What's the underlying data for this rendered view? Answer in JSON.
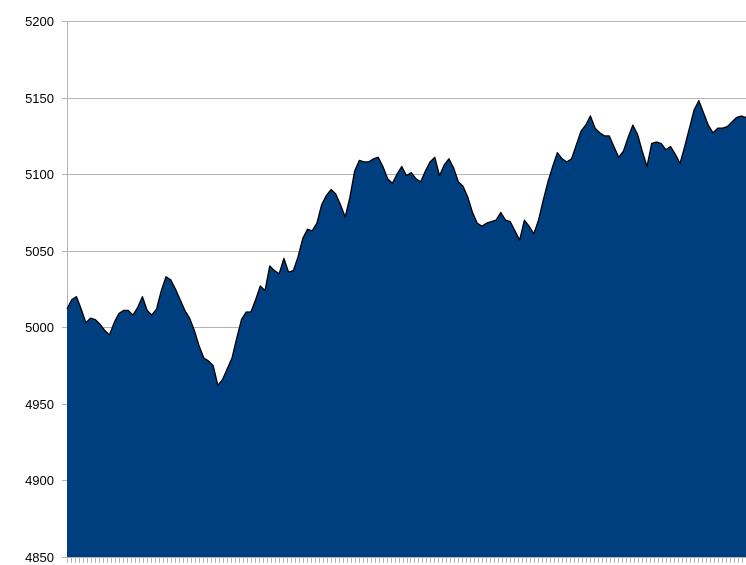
{
  "chart_data": {
    "type": "area",
    "title": "",
    "xlabel": "",
    "ylabel": "",
    "ylim": [
      4850,
      5200
    ],
    "yticks": [
      4850,
      4900,
      4950,
      5000,
      5050,
      5100,
      5150,
      5200
    ],
    "ytick_labels": [
      "4850",
      "4900",
      "4950",
      "5000",
      "5050",
      "5100",
      "5150",
      "5200"
    ],
    "grid": "horizontal",
    "legend": "none",
    "x_tick_count": 170,
    "fill_color": "#003f7f",
    "line_color": "#000000",
    "grid_color": "#b3b3b3",
    "axis_color": "#b3b3b3",
    "series": [
      {
        "values": [
          5012,
          5018,
          5020,
          5012,
          5003,
          5006,
          5005,
          5002,
          4998,
          4995,
          5003,
          5009,
          5011,
          5011,
          5008,
          5013,
          5020,
          5011,
          5008,
          5012,
          5024,
          5033,
          5031,
          5025,
          5018,
          5011,
          5006,
          4998,
          4988,
          4980,
          4978,
          4975,
          4962,
          4966,
          4973,
          4980,
          4993,
          5005,
          5010,
          5010,
          5018,
          5027,
          5024,
          5040,
          5037,
          5035,
          5045,
          5036,
          5037,
          5046,
          5058,
          5064,
          5063,
          5068,
          5080,
          5086,
          5090,
          5087,
          5080,
          5072,
          5085,
          5102,
          5109,
          5108,
          5108,
          5110,
          5111,
          5105,
          5097,
          5094,
          5100,
          5105,
          5099,
          5101,
          5097,
          5095,
          5102,
          5108,
          5111,
          5099,
          5106,
          5110,
          5104,
          5095,
          5092,
          5085,
          5075,
          5068,
          5066,
          5068,
          5069,
          5070,
          5075,
          5070,
          5069,
          5063,
          5057,
          5070,
          5066,
          5061,
          5070,
          5083,
          5095,
          5105,
          5114,
          5110,
          5108,
          5110,
          5119,
          5128,
          5132,
          5138,
          5130,
          5127,
          5125,
          5125,
          5118,
          5111,
          5115,
          5124,
          5132,
          5126,
          5115,
          5105,
          5120,
          5121,
          5120,
          5116,
          5118,
          5113,
          5107,
          5118,
          5130,
          5142,
          5148,
          5140,
          5132,
          5127,
          5130,
          5130,
          5131,
          5134,
          5137,
          5138,
          5137
        ]
      }
    ]
  }
}
